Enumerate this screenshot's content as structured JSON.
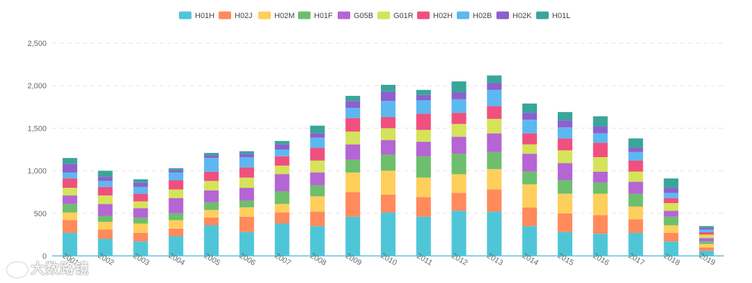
{
  "chart_data": {
    "type": "bar",
    "stacked": true,
    "title": "",
    "xlabel": "",
    "ylabel": "",
    "ylim": [
      0,
      2500
    ],
    "yticks": [
      0,
      500,
      1000,
      1500,
      2000,
      2500
    ],
    "ytick_labels": [
      "0",
      "500",
      "1,000",
      "1,500",
      "2,000",
      "2,500"
    ],
    "grid": true,
    "legend_position": "top",
    "categories": [
      "2001",
      "2002",
      "2003",
      "2004",
      "2005",
      "2006",
      "2007",
      "2008",
      "2009",
      "2010",
      "2011",
      "2012",
      "2013",
      "2014",
      "2015",
      "2016",
      "2017",
      "2018",
      "2019"
    ],
    "series": [
      {
        "name": "H01H",
        "color": "#4fc6d8",
        "values": [
          270,
          200,
          170,
          230,
          360,
          280,
          380,
          350,
          460,
          510,
          460,
          530,
          520,
          350,
          280,
          260,
          270,
          170,
          60
        ]
      },
      {
        "name": "H02J",
        "color": "#ff8a5c",
        "values": [
          150,
          110,
          100,
          90,
          90,
          180,
          130,
          170,
          290,
          210,
          230,
          210,
          260,
          220,
          220,
          220,
          160,
          100,
          40
        ]
      },
      {
        "name": "H02M",
        "color": "#ffcf5c",
        "values": [
          90,
          90,
          110,
          100,
          90,
          110,
          100,
          180,
          230,
          280,
          230,
          220,
          240,
          270,
          230,
          250,
          150,
          90,
          40
        ]
      },
      {
        "name": "H01F",
        "color": "#6dbf6d",
        "values": [
          100,
          70,
          70,
          80,
          90,
          80,
          150,
          130,
          150,
          190,
          250,
          240,
          200,
          150,
          160,
          130,
          150,
          100,
          30
        ]
      },
      {
        "name": "G05B",
        "color": "#b565d4",
        "values": [
          100,
          140,
          110,
          180,
          140,
          150,
          200,
          150,
          180,
          170,
          170,
          200,
          220,
          210,
          200,
          130,
          140,
          70,
          40
        ]
      },
      {
        "name": "G01R",
        "color": "#d5e35a",
        "values": [
          90,
          100,
          80,
          100,
          110,
          120,
          100,
          140,
          150,
          140,
          140,
          150,
          170,
          110,
          150,
          170,
          120,
          90,
          40
        ]
      },
      {
        "name": "H02H",
        "color": "#f0507e",
        "values": [
          110,
          100,
          90,
          110,
          110,
          120,
          110,
          150,
          160,
          130,
          190,
          130,
          150,
          130,
          140,
          170,
          130,
          60,
          30
        ]
      },
      {
        "name": "H02B",
        "color": "#5cb8f0",
        "values": [
          70,
          70,
          80,
          90,
          160,
          120,
          80,
          120,
          120,
          190,
          160,
          160,
          190,
          160,
          130,
          110,
          100,
          60,
          30
        ]
      },
      {
        "name": "H02K",
        "color": "#8e5fcf",
        "values": [
          100,
          50,
          50,
          30,
          30,
          40,
          60,
          50,
          80,
          110,
          60,
          80,
          80,
          80,
          80,
          80,
          50,
          60,
          20
        ]
      },
      {
        "name": "H01L",
        "color": "#3aa59a",
        "values": [
          70,
          70,
          40,
          20,
          30,
          30,
          40,
          90,
          60,
          80,
          60,
          130,
          90,
          110,
          100,
          120,
          110,
          110,
          20
        ]
      }
    ]
  },
  "watermark": {
    "text": "大数路镜"
  }
}
